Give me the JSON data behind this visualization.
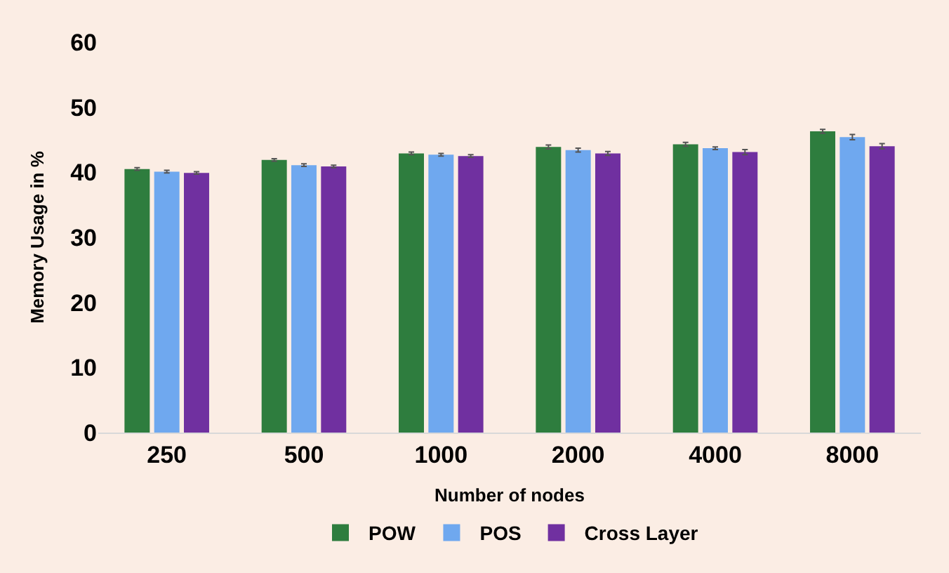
{
  "chart_data": {
    "type": "bar",
    "xlabel": "Number of nodes",
    "ylabel": "Memory Usage in %",
    "categories": [
      "250",
      "500",
      "1000",
      "2000",
      "4000",
      "8000"
    ],
    "series": [
      {
        "name": "POW",
        "color": "#2e7d3e",
        "values": [
          40.5,
          41.9,
          42.9,
          43.9,
          44.3,
          46.3
        ],
        "errors": [
          0.2,
          0.2,
          0.2,
          0.3,
          0.3,
          0.3
        ]
      },
      {
        "name": "POS",
        "color": "#6fa8ef",
        "values": [
          40.1,
          41.1,
          42.7,
          43.4,
          43.7,
          45.4
        ],
        "errors": [
          0.2,
          0.2,
          0.2,
          0.3,
          0.2,
          0.4
        ]
      },
      {
        "name": "Cross Layer",
        "color": "#7030a0",
        "values": [
          39.9,
          40.9,
          42.5,
          42.9,
          43.1,
          44.0
        ],
        "errors": [
          0.2,
          0.2,
          0.2,
          0.3,
          0.4,
          0.4
        ]
      }
    ],
    "ylim": [
      0,
      60
    ],
    "yticks": [
      0,
      10,
      20,
      30,
      40,
      50,
      60
    ],
    "grid": false,
    "legend": "bottom"
  }
}
